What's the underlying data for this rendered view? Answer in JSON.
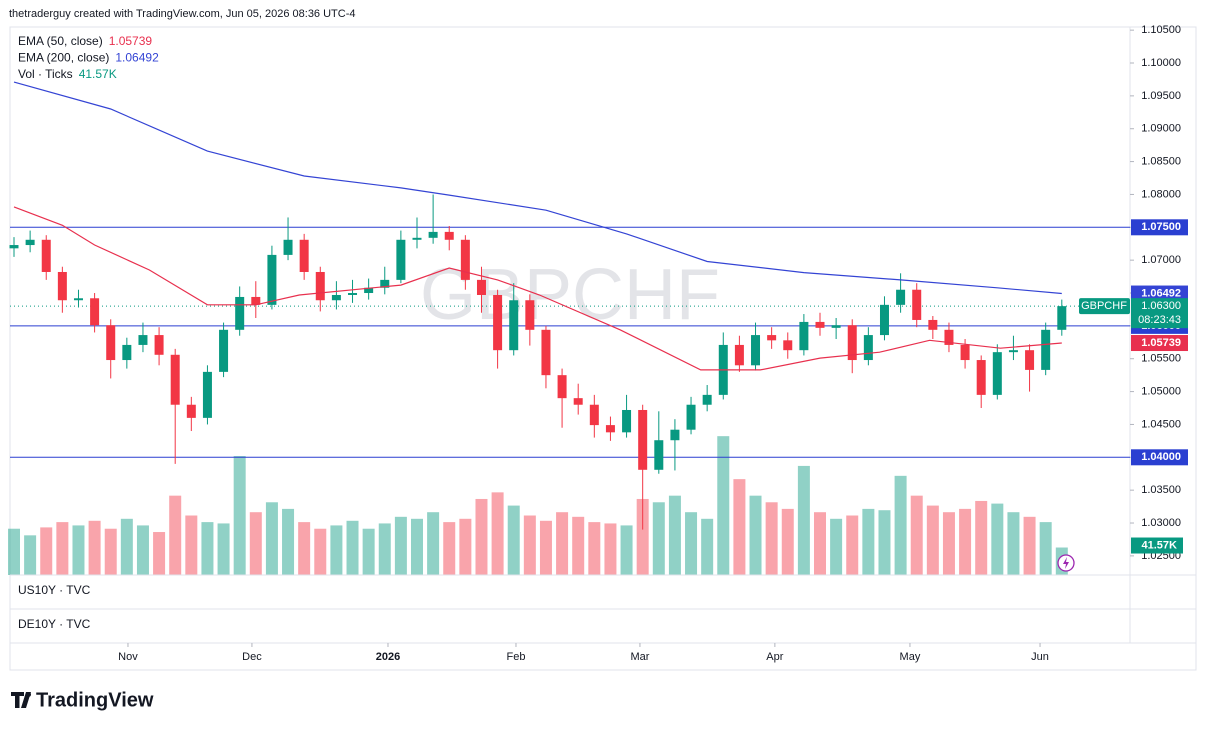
{
  "credit": "thetraderguy created with TradingView.com, Jun 05, 2026 08:36 UTC-4",
  "brand": "TradingView",
  "chart_data": {
    "type": "candlestick",
    "symbol": "GBPCHF",
    "last_price_label": "1.06300",
    "countdown": "08:23:43",
    "up_color": "#089981",
    "down_color": "#f23645",
    "ylim": [
      1.02209,
      1.10548
    ],
    "yticks": [
      {
        "value": 1.025,
        "label": "1.02500"
      },
      {
        "value": 1.03,
        "label": "1.03000"
      },
      {
        "value": 1.035,
        "label": "1.03500"
      },
      {
        "value": 1.04,
        "label": "1.04000"
      },
      {
        "value": 1.045,
        "label": "1.04500"
      },
      {
        "value": 1.05,
        "label": "1.05000"
      },
      {
        "value": 1.055,
        "label": "1.05500"
      },
      {
        "value": 1.06,
        "label": "1.06000"
      },
      {
        "value": 1.065,
        "label": "1.06500"
      },
      {
        "value": 1.07,
        "label": "1.07000"
      },
      {
        "value": 1.075,
        "label": "1.07500"
      },
      {
        "value": 1.08,
        "label": "1.08000"
      },
      {
        "value": 1.085,
        "label": "1.08500"
      },
      {
        "value": 1.09,
        "label": "1.09000"
      },
      {
        "value": 1.095,
        "label": "1.09500"
      },
      {
        "value": 1.1,
        "label": "1.10000"
      },
      {
        "value": 1.105,
        "label": "1.10500"
      }
    ],
    "xticks": [
      {
        "value": 7.07,
        "label": "Nov"
      },
      {
        "value": 14.76,
        "label": "Dec"
      },
      {
        "value": 23.2,
        "label": "2026"
      },
      {
        "value": 31.14,
        "label": "Feb"
      },
      {
        "value": 38.83,
        "label": "Mar"
      },
      {
        "value": 47.2,
        "label": "Apr"
      },
      {
        "value": 55.58,
        "label": "May"
      },
      {
        "value": 63.65,
        "label": "Jun"
      }
    ],
    "levels": {
      "color": "#2a3fd1",
      "lines": [
        {
          "value": 1.075,
          "label": "1.07500"
        },
        {
          "value": 1.06,
          "label": "1.06000"
        },
        {
          "value": 1.04,
          "label": "1.04000"
        }
      ]
    },
    "open": [
      1.0718,
      1.0723,
      1.0731,
      1.0682,
      1.0639,
      1.0642,
      1.0601,
      1.0548,
      1.0571,
      1.0586,
      1.0556,
      1.048,
      1.046,
      1.053,
      1.0594,
      1.0644,
      1.0632,
      1.0708,
      1.0731,
      1.0682,
      1.0639,
      1.0647,
      1.065,
      1.0658,
      1.067,
      1.0731,
      1.0734,
      1.0743,
      1.0731,
      1.067,
      1.0647,
      1.0563,
      1.0639,
      1.0594,
      1.0525,
      1.049,
      1.048,
      1.0449,
      1.0438,
      1.0472,
      1.0381,
      1.0426,
      1.0442,
      1.048,
      1.0495,
      1.0571,
      1.054,
      1.0586,
      1.0578,
      1.0563,
      1.0606,
      1.0597,
      1.0601,
      1.0548,
      1.0586,
      1.0632,
      1.0655,
      1.0609,
      1.0594,
      1.0571,
      1.0548,
      1.0495,
      1.056,
      1.0563,
      1.0533,
      1.0594
    ],
    "high": [
      1.0735,
      1.0745,
      1.0738,
      1.069,
      1.0655,
      1.065,
      1.061,
      1.0582,
      1.0605,
      1.0598,
      1.0565,
      1.0492,
      1.054,
      1.0605,
      1.066,
      1.0668,
      1.0722,
      1.0765,
      1.074,
      1.069,
      1.0668,
      1.067,
      1.0672,
      1.069,
      1.0745,
      1.0765,
      1.08,
      1.0752,
      1.0738,
      1.069,
      1.0655,
      1.0665,
      1.0648,
      1.06,
      1.0535,
      1.0512,
      1.0495,
      1.0462,
      1.0495,
      1.048,
      1.047,
      1.0458,
      1.0492,
      1.051,
      1.059,
      1.0585,
      1.0605,
      1.0598,
      1.059,
      1.0618,
      1.062,
      1.0612,
      1.061,
      1.0598,
      1.0645,
      1.068,
      1.0665,
      1.0615,
      1.0605,
      1.058,
      1.0555,
      1.0572,
      1.0585,
      1.0572,
      1.0605,
      1.064
    ],
    "low": [
      1.0705,
      1.0712,
      1.067,
      1.062,
      1.0628,
      1.059,
      1.052,
      1.0535,
      1.056,
      1.054,
      1.039,
      1.044,
      1.045,
      1.0522,
      1.0585,
      1.0612,
      1.0625,
      1.07,
      1.067,
      1.0622,
      1.0625,
      1.0635,
      1.064,
      1.0648,
      1.0665,
      1.0718,
      1.0725,
      1.0715,
      1.0655,
      1.062,
      1.0535,
      1.0555,
      1.057,
      1.0505,
      1.0445,
      1.0465,
      1.043,
      1.0425,
      1.043,
      1.029,
      1.0375,
      1.038,
      1.0435,
      1.047,
      1.0488,
      1.053,
      1.0532,
      1.0565,
      1.055,
      1.0555,
      1.0585,
      1.058,
      1.0528,
      1.054,
      1.0578,
      1.062,
      1.0598,
      1.058,
      1.056,
      1.0535,
      1.0475,
      1.0488,
      1.0548,
      1.05,
      1.0525,
      1.0585
    ],
    "close": [
      1.0723,
      1.0731,
      1.0682,
      1.0639,
      1.0642,
      1.0601,
      1.0548,
      1.0571,
      1.0586,
      1.0556,
      1.048,
      1.046,
      1.053,
      1.0594,
      1.0644,
      1.0632,
      1.0708,
      1.0731,
      1.0682,
      1.0639,
      1.0647,
      1.065,
      1.0658,
      1.067,
      1.0731,
      1.0734,
      1.0743,
      1.0731,
      1.067,
      1.0647,
      1.0563,
      1.0639,
      1.0594,
      1.0525,
      1.049,
      1.048,
      1.0449,
      1.0438,
      1.0472,
      1.0381,
      1.0426,
      1.0442,
      1.048,
      1.0495,
      1.0571,
      1.054,
      1.0586,
      1.0578,
      1.0563,
      1.0606,
      1.0597,
      1.0601,
      1.0548,
      1.0586,
      1.0632,
      1.0655,
      1.0609,
      1.0594,
      1.0571,
      1.0548,
      1.0495,
      1.056,
      1.0563,
      1.0533,
      1.0594,
      1.063
    ],
    "volume": {
      "name": "Vol · Ticks",
      "unit_label": "41.57K",
      "ylim": [
        0,
        360
      ],
      "values": [
        70,
        60,
        72,
        80,
        75,
        82,
        70,
        85,
        75,
        65,
        120,
        90,
        80,
        78,
        180,
        95,
        110,
        100,
        80,
        70,
        75,
        82,
        70,
        78,
        88,
        85,
        95,
        80,
        85,
        115,
        125,
        105,
        90,
        82,
        95,
        88,
        80,
        78,
        75,
        115,
        110,
        120,
        95,
        85,
        210,
        145,
        120,
        110,
        100,
        165,
        95,
        85,
        90,
        100,
        98,
        150,
        120,
        105,
        95,
        100,
        112,
        108,
        95,
        88,
        80,
        41.57
      ]
    },
    "series": [
      {
        "name": "EMA (50, close)",
        "color": "#e8304e",
        "x": [
          0,
          3,
          5,
          8.4,
          12,
          15,
          17.7,
          24,
          27,
          30,
          32.6,
          37.6,
          42.6,
          46.3,
          50,
          53.7,
          56.8,
          61.2,
          65
        ],
        "values": [
          1.0781,
          1.0753,
          1.0723,
          1.0685,
          1.0632,
          1.0632,
          1.0647,
          1.0662,
          1.0688,
          1.067,
          1.0647,
          1.0594,
          1.0533,
          1.0533,
          1.0551,
          1.056,
          1.0578,
          1.0566,
          1.05739
        ]
      },
      {
        "name": "EMA (200, close)",
        "color": "#3444d4",
        "x": [
          0,
          6,
          12,
          18,
          24,
          27,
          33,
          38,
          43,
          49,
          55,
          61,
          65
        ],
        "values": [
          1.0971,
          1.093,
          1.0866,
          1.0828,
          1.081,
          1.0799,
          1.0776,
          1.074,
          1.0698,
          1.0681,
          1.067,
          1.0658,
          1.06492
        ]
      }
    ],
    "panes": [
      "US10Y · TVC",
      "DE10Y · TVC"
    ]
  }
}
